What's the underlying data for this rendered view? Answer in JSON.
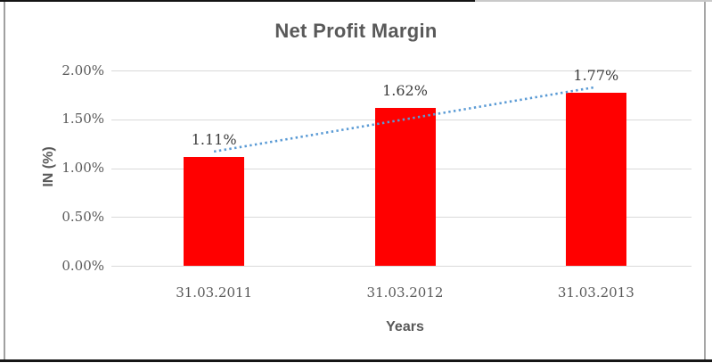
{
  "chart_data": {
    "type": "bar",
    "title": "Net Profit Margin",
    "xlabel": "Years",
    "ylabel": "IN (%)",
    "categories": [
      "31.03.2011",
      "31.03.2012",
      "31.03.2013"
    ],
    "values": [
      1.11,
      1.62,
      1.77
    ],
    "value_labels": [
      "1.11%",
      "1.62%",
      "1.77%"
    ],
    "ylim": [
      0,
      2.0
    ],
    "y_ticks": [
      {
        "value": 2.0,
        "label": "2.00%"
      },
      {
        "value": 1.5,
        "label": "1.50%"
      },
      {
        "value": 1.0,
        "label": "1.00%"
      },
      {
        "value": 0.5,
        "label": "0.50%"
      },
      {
        "value": 0.0,
        "label": "0.00%"
      }
    ],
    "grid": true,
    "legend": false,
    "trendline": {
      "type": "linear",
      "style": "dotted",
      "start_value": 1.17,
      "end_value": 1.83
    },
    "colors": {
      "bar": "#FF0000",
      "trendline": "#5B9BD5",
      "gridline": "#D9D9D9",
      "axis_text": "#595959",
      "value_label": "#3B3B3B",
      "title_text": "#595959"
    }
  }
}
